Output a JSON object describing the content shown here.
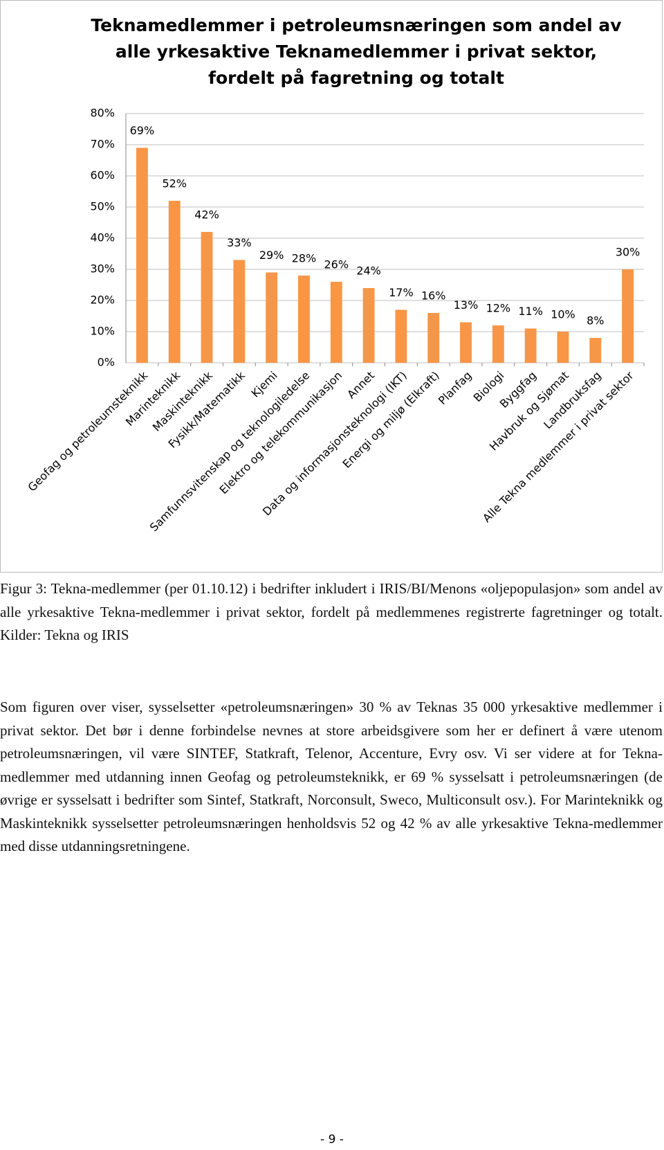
{
  "chart_data": {
    "type": "bar",
    "title": "Teknamedlemmer i petroleumsnæringen som andel av alle yrkesaktive Teknamedlemmer i privat sektor, fordelt på fagretning og totalt",
    "categories": [
      "Geofag og petroleumsteknikk",
      "Marinteknikk",
      "Maskinteknikk",
      "Fysikk/Matematikk",
      "Kjemi",
      "Samfunnsvitenskap og teknologiledelse",
      "Elektro og telekommunikasjon",
      "Annet",
      "Data og informasjonsteknologi (IKT)",
      "Energi og miljø (Elkraft)",
      "Planfag",
      "Biologi",
      "Byggfag",
      "Havbruk og Sjømat",
      "Landbruksfag",
      "Alle Tekna medlemmer i privat sektor"
    ],
    "values": [
      69,
      52,
      42,
      33,
      29,
      28,
      26,
      24,
      17,
      16,
      13,
      12,
      11,
      10,
      8,
      30
    ],
    "value_labels": [
      "69%",
      "52%",
      "42%",
      "33%",
      "29%",
      "28%",
      "26%",
      "24%",
      "17%",
      "16%",
      "13%",
      "12%",
      "11%",
      "10%",
      "8%",
      "30%"
    ],
    "color": "#f79646",
    "ylim": [
      0,
      80
    ],
    "yticks": [
      {
        "value": 0,
        "label": "0%"
      },
      {
        "value": 10,
        "label": "10%"
      },
      {
        "value": 20,
        "label": "20%"
      },
      {
        "value": 30,
        "label": "30%"
      },
      {
        "value": 40,
        "label": "40%"
      },
      {
        "value": 50,
        "label": "50%"
      },
      {
        "value": 60,
        "label": "60%"
      },
      {
        "value": 70,
        "label": "70%"
      },
      {
        "value": 80,
        "label": "80%"
      }
    ],
    "grid": true
  },
  "caption": "Figur 3: Tekna-medlemmer (per 01.10.12) i bedrifter inkludert i IRIS/BI/Menons «oljepopulasjon» som andel av alle yrkesaktive Tekna-medlemmer i privat sektor, fordelt på medlemmenes registrerte fagretninger og totalt. Kilder: Tekna og IRIS",
  "paragraph": "Som figuren over viser, sysselsetter «petroleumsnæringen» 30 % av Teknas 35 000 yrkesaktive medlemmer i privat sektor. Det bør i denne forbindelse nevnes at store arbeidsgivere som her er definert å være utenom petroleumsnæringen, vil være SINTEF, Statkraft, Telenor, Accenture, Evry osv. Vi ser videre at for Tekna-medlemmer med utdanning innen Geofag og petroleumsteknikk, er 69 % sysselsatt i petroleumsnæringen (de øvrige er sysselsatt i bedrifter som Sintef, Statkraft, Norconsult, Sweco, Multiconsult osv.). For Marinteknikk og Maskinteknikk sysselsetter petroleumsnæringen henholdsvis 52 og 42 % av alle yrkesaktive Tekna-medlemmer med disse utdanningsretningene.",
  "page_number": "- 9 -"
}
